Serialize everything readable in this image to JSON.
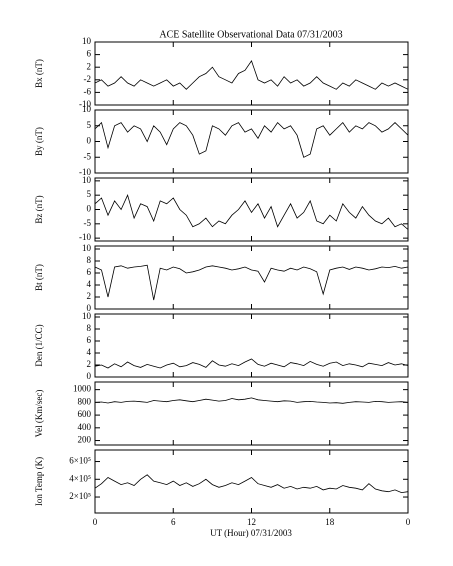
{
  "title": "ACE Satellite Observational Data   07/31/2003",
  "xlabel": "UT (Hour)   07/31/2003",
  "chart_data": [
    {
      "type": "line",
      "ylabel": "Bx (nT)",
      "color": "#000000",
      "x": [
        0,
        0.5,
        1,
        1.5,
        2,
        2.5,
        3,
        3.5,
        4,
        4.5,
        5,
        5.5,
        6,
        6.5,
        7,
        7.5,
        8,
        8.5,
        9,
        9.5,
        10,
        10.5,
        11,
        11.5,
        12,
        12.5,
        13,
        13.5,
        14,
        14.5,
        15,
        15.5,
        16,
        16.5,
        17,
        17.5,
        18,
        18.5,
        19,
        19.5,
        20,
        20.5,
        21,
        21.5,
        22,
        22.5,
        23,
        23.5,
        24
      ],
      "values": [
        -3,
        -2,
        -4,
        -3,
        -1,
        -3,
        -4,
        -2,
        -3,
        -4,
        -3,
        -2,
        -4,
        -3,
        -5,
        -3,
        -1,
        0,
        2,
        -1,
        -2,
        -3,
        0,
        1,
        4,
        -2,
        -3,
        -2,
        -4,
        -1,
        -3,
        -2,
        -4,
        -3,
        -1,
        -3,
        -4,
        -5,
        -3,
        -4,
        -2,
        -3,
        -4,
        -5,
        -3,
        -4,
        -3,
        -4,
        -5
      ],
      "xlim": [
        0,
        24
      ],
      "xticks": [
        0,
        6,
        12,
        18,
        {
          "value": 24,
          "label": "0"
        }
      ],
      "ylim": [
        -10,
        10
      ],
      "yticks": [
        -10,
        -6,
        -2,
        2,
        6,
        10
      ]
    },
    {
      "type": "line",
      "ylabel": "By (nT)",
      "color": "#000000",
      "x": [
        0,
        0.5,
        1,
        1.5,
        2,
        2.5,
        3,
        3.5,
        4,
        4.5,
        5,
        5.5,
        6,
        6.5,
        7,
        7.5,
        8,
        8.5,
        9,
        9.5,
        10,
        10.5,
        11,
        11.5,
        12,
        12.5,
        13,
        13.5,
        14,
        14.5,
        15,
        15.5,
        16,
        16.5,
        17,
        17.5,
        18,
        18.5,
        19,
        19.5,
        20,
        20.5,
        21,
        21.5,
        22,
        22.5,
        23,
        23.5,
        24
      ],
      "values": [
        4,
        6,
        -2,
        5,
        6,
        3,
        5,
        4,
        0,
        5,
        3,
        -1,
        4,
        6,
        5,
        2,
        -4,
        -3,
        5,
        4,
        2,
        5,
        6,
        3,
        4,
        1,
        5,
        3,
        6,
        4,
        5,
        2,
        -5,
        -4,
        4,
        5,
        2,
        4,
        6,
        3,
        5,
        4,
        6,
        5,
        3,
        4,
        6,
        4,
        2
      ],
      "xlim": [
        0,
        24
      ],
      "xticks": [
        0,
        6,
        12,
        18,
        {
          "value": 24,
          "label": "0"
        }
      ],
      "ylim": [
        -10,
        10
      ],
      "yticks": [
        -10,
        -5,
        0,
        5,
        10
      ]
    },
    {
      "type": "line",
      "ylabel": "Bz (nT)",
      "color": "#000000",
      "x": [
        0,
        0.5,
        1,
        1.5,
        2,
        2.5,
        3,
        3.5,
        4,
        4.5,
        5,
        5.5,
        6,
        6.5,
        7,
        7.5,
        8,
        8.5,
        9,
        9.5,
        10,
        10.5,
        11,
        11.5,
        12,
        12.5,
        13,
        13.5,
        14,
        14.5,
        15,
        15.5,
        16,
        16.5,
        17,
        17.5,
        18,
        18.5,
        19,
        19.5,
        20,
        20.5,
        21,
        21.5,
        22,
        22.5,
        23,
        23.5,
        24
      ],
      "values": [
        2,
        4,
        -2,
        3,
        0,
        5,
        -3,
        2,
        1,
        -4,
        3,
        2,
        4,
        0,
        -2,
        -6,
        -5,
        -3,
        -6,
        -4,
        -5,
        -2,
        0,
        3,
        -1,
        2,
        -3,
        1,
        -6,
        -2,
        2,
        -3,
        -1,
        3,
        -4,
        -5,
        -2,
        -4,
        2,
        -1,
        -3,
        1,
        -2,
        -4,
        -5,
        -3,
        -6,
        -5,
        -7
      ],
      "xlim": [
        0,
        24
      ],
      "xticks": [
        0,
        6,
        12,
        18,
        {
          "value": 24,
          "label": "0"
        }
      ],
      "ylim": [
        -11,
        11
      ],
      "yticks": [
        -10,
        -5,
        0,
        5,
        10
      ]
    },
    {
      "type": "line",
      "ylabel": "Bt (nT)",
      "color": "#000000",
      "x": [
        0,
        0.5,
        1,
        1.5,
        2,
        2.5,
        3,
        3.5,
        4,
        4.5,
        5,
        5.5,
        6,
        6.5,
        7,
        7.5,
        8,
        8.5,
        9,
        9.5,
        10,
        10.5,
        11,
        11.5,
        12,
        12.5,
        13,
        13.5,
        14,
        14.5,
        15,
        15.5,
        16,
        16.5,
        17,
        17.5,
        18,
        18.5,
        19,
        19.5,
        20,
        20.5,
        21,
        21.5,
        22,
        22.5,
        23,
        23.5,
        24
      ],
      "values": [
        7,
        6.5,
        2,
        7,
        7.2,
        6.8,
        7,
        7.1,
        7.3,
        1.5,
        6.8,
        6.5,
        7,
        6.7,
        6,
        6.2,
        6.5,
        7,
        7.2,
        7,
        6.8,
        6.5,
        6.7,
        7,
        6.5,
        6.3,
        4.5,
        6.8,
        6.5,
        6.3,
        6.8,
        6.5,
        7,
        6.7,
        6.2,
        2.5,
        6.5,
        6.8,
        7,
        6.6,
        7,
        6.8,
        6.5,
        6.7,
        7,
        6.9,
        7.1,
        6.8,
        7
      ],
      "xlim": [
        0,
        24
      ],
      "xticks": [
        0,
        6,
        12,
        18,
        {
          "value": 24,
          "label": "0"
        }
      ],
      "ylim": [
        0,
        10.5
      ],
      "yticks": [
        0,
        2,
        4,
        6,
        8,
        10
      ]
    },
    {
      "type": "line",
      "ylabel": "Den (1/CC)",
      "color": "#000000",
      "x": [
        0,
        0.5,
        1,
        1.5,
        2,
        2.5,
        3,
        3.5,
        4,
        4.5,
        5,
        5.5,
        6,
        6.5,
        7,
        7.5,
        8,
        8.5,
        9,
        9.5,
        10,
        10.5,
        11,
        11.5,
        12,
        12.5,
        13,
        13.5,
        14,
        14.5,
        15,
        15.5,
        16,
        16.5,
        17,
        17.5,
        18,
        18.5,
        19,
        19.5,
        20,
        20.5,
        21,
        21.5,
        22,
        22.5,
        23,
        23.5,
        24
      ],
      "values": [
        1.8,
        2,
        1.5,
        2.2,
        1.7,
        2.5,
        1.9,
        1.6,
        2.1,
        1.8,
        1.5,
        2,
        2.3,
        1.7,
        1.9,
        2.4,
        2.1,
        1.6,
        2.7,
        2,
        1.8,
        2.2,
        1.9,
        2.5,
        3,
        2.1,
        1.8,
        2.3,
        2,
        1.7,
        2.4,
        2.2,
        1.9,
        2.6,
        2.1,
        1.8,
        2.3,
        2.5,
        1.9,
        2.2,
        2,
        1.7,
        2.3,
        2.1,
        1.9,
        2.4,
        2,
        2.2,
        1.9
      ],
      "xlim": [
        0,
        24
      ],
      "xticks": [
        0,
        6,
        12,
        18,
        {
          "value": 24,
          "label": "0"
        }
      ],
      "ylim": [
        0,
        10.5
      ],
      "yticks": [
        0,
        2,
        4,
        6,
        8,
        10
      ]
    },
    {
      "type": "line",
      "ylabel": "Vel (Km/sec)",
      "color": "#000000",
      "x": [
        0,
        0.5,
        1,
        1.5,
        2,
        2.5,
        3,
        3.5,
        4,
        4.5,
        5,
        5.5,
        6,
        6.5,
        7,
        7.5,
        8,
        8.5,
        9,
        9.5,
        10,
        10.5,
        11,
        11.5,
        12,
        12.5,
        13,
        13.5,
        14,
        14.5,
        15,
        15.5,
        16,
        16.5,
        17,
        17.5,
        18,
        18.5,
        19,
        19.5,
        20,
        20.5,
        21,
        21.5,
        22,
        22.5,
        23,
        23.5,
        24
      ],
      "values": [
        800,
        805,
        790,
        810,
        800,
        815,
        820,
        810,
        800,
        830,
        820,
        810,
        830,
        840,
        825,
        810,
        830,
        850,
        835,
        820,
        830,
        860,
        840,
        850,
        870,
        840,
        830,
        820,
        810,
        825,
        820,
        800,
        810,
        815,
        805,
        800,
        790,
        795,
        785,
        800,
        810,
        805,
        800,
        815,
        810,
        800,
        805,
        810,
        800
      ],
      "xlim": [
        0,
        24
      ],
      "xticks": [
        0,
        6,
        12,
        18,
        {
          "value": 24,
          "label": "0"
        }
      ],
      "ylim": [
        130,
        1120
      ],
      "yticks": [
        200,
        400,
        600,
        800,
        1000
      ]
    },
    {
      "type": "line",
      "ylabel": "Ion Temp (K)",
      "color": "#000000",
      "x": [
        0,
        0.5,
        1,
        1.5,
        2,
        2.5,
        3,
        3.5,
        4,
        4.5,
        5,
        5.5,
        6,
        6.5,
        7,
        7.5,
        8,
        8.5,
        9,
        9.5,
        10,
        10.5,
        11,
        11.5,
        12,
        12.5,
        13,
        13.5,
        14,
        14.5,
        15,
        15.5,
        16,
        16.5,
        17,
        17.5,
        18,
        18.5,
        19,
        19.5,
        20,
        20.5,
        21,
        21.5,
        22,
        22.5,
        23,
        23.5,
        24
      ],
      "values": [
        300000,
        350000,
        420000,
        380000,
        340000,
        360000,
        330000,
        400000,
        450000,
        380000,
        360000,
        340000,
        380000,
        330000,
        360000,
        320000,
        350000,
        400000,
        340000,
        310000,
        330000,
        360000,
        340000,
        380000,
        420000,
        350000,
        330000,
        310000,
        340000,
        300000,
        320000,
        290000,
        310000,
        300000,
        320000,
        280000,
        300000,
        290000,
        330000,
        310000,
        300000,
        280000,
        350000,
        290000,
        270000,
        260000,
        280000,
        250000,
        260000
      ],
      "xlim": [
        0,
        24
      ],
      "xticks": [
        0,
        6,
        12,
        18,
        {
          "value": 24,
          "label": "0"
        }
      ],
      "ylim": [
        20000,
        730000
      ],
      "yticks": [
        {
          "value": 200000,
          "label": "2×10⁵"
        },
        {
          "value": 400000,
          "label": "4×10⁵"
        },
        {
          "value": 600000,
          "label": "6×10⁵"
        }
      ]
    }
  ]
}
